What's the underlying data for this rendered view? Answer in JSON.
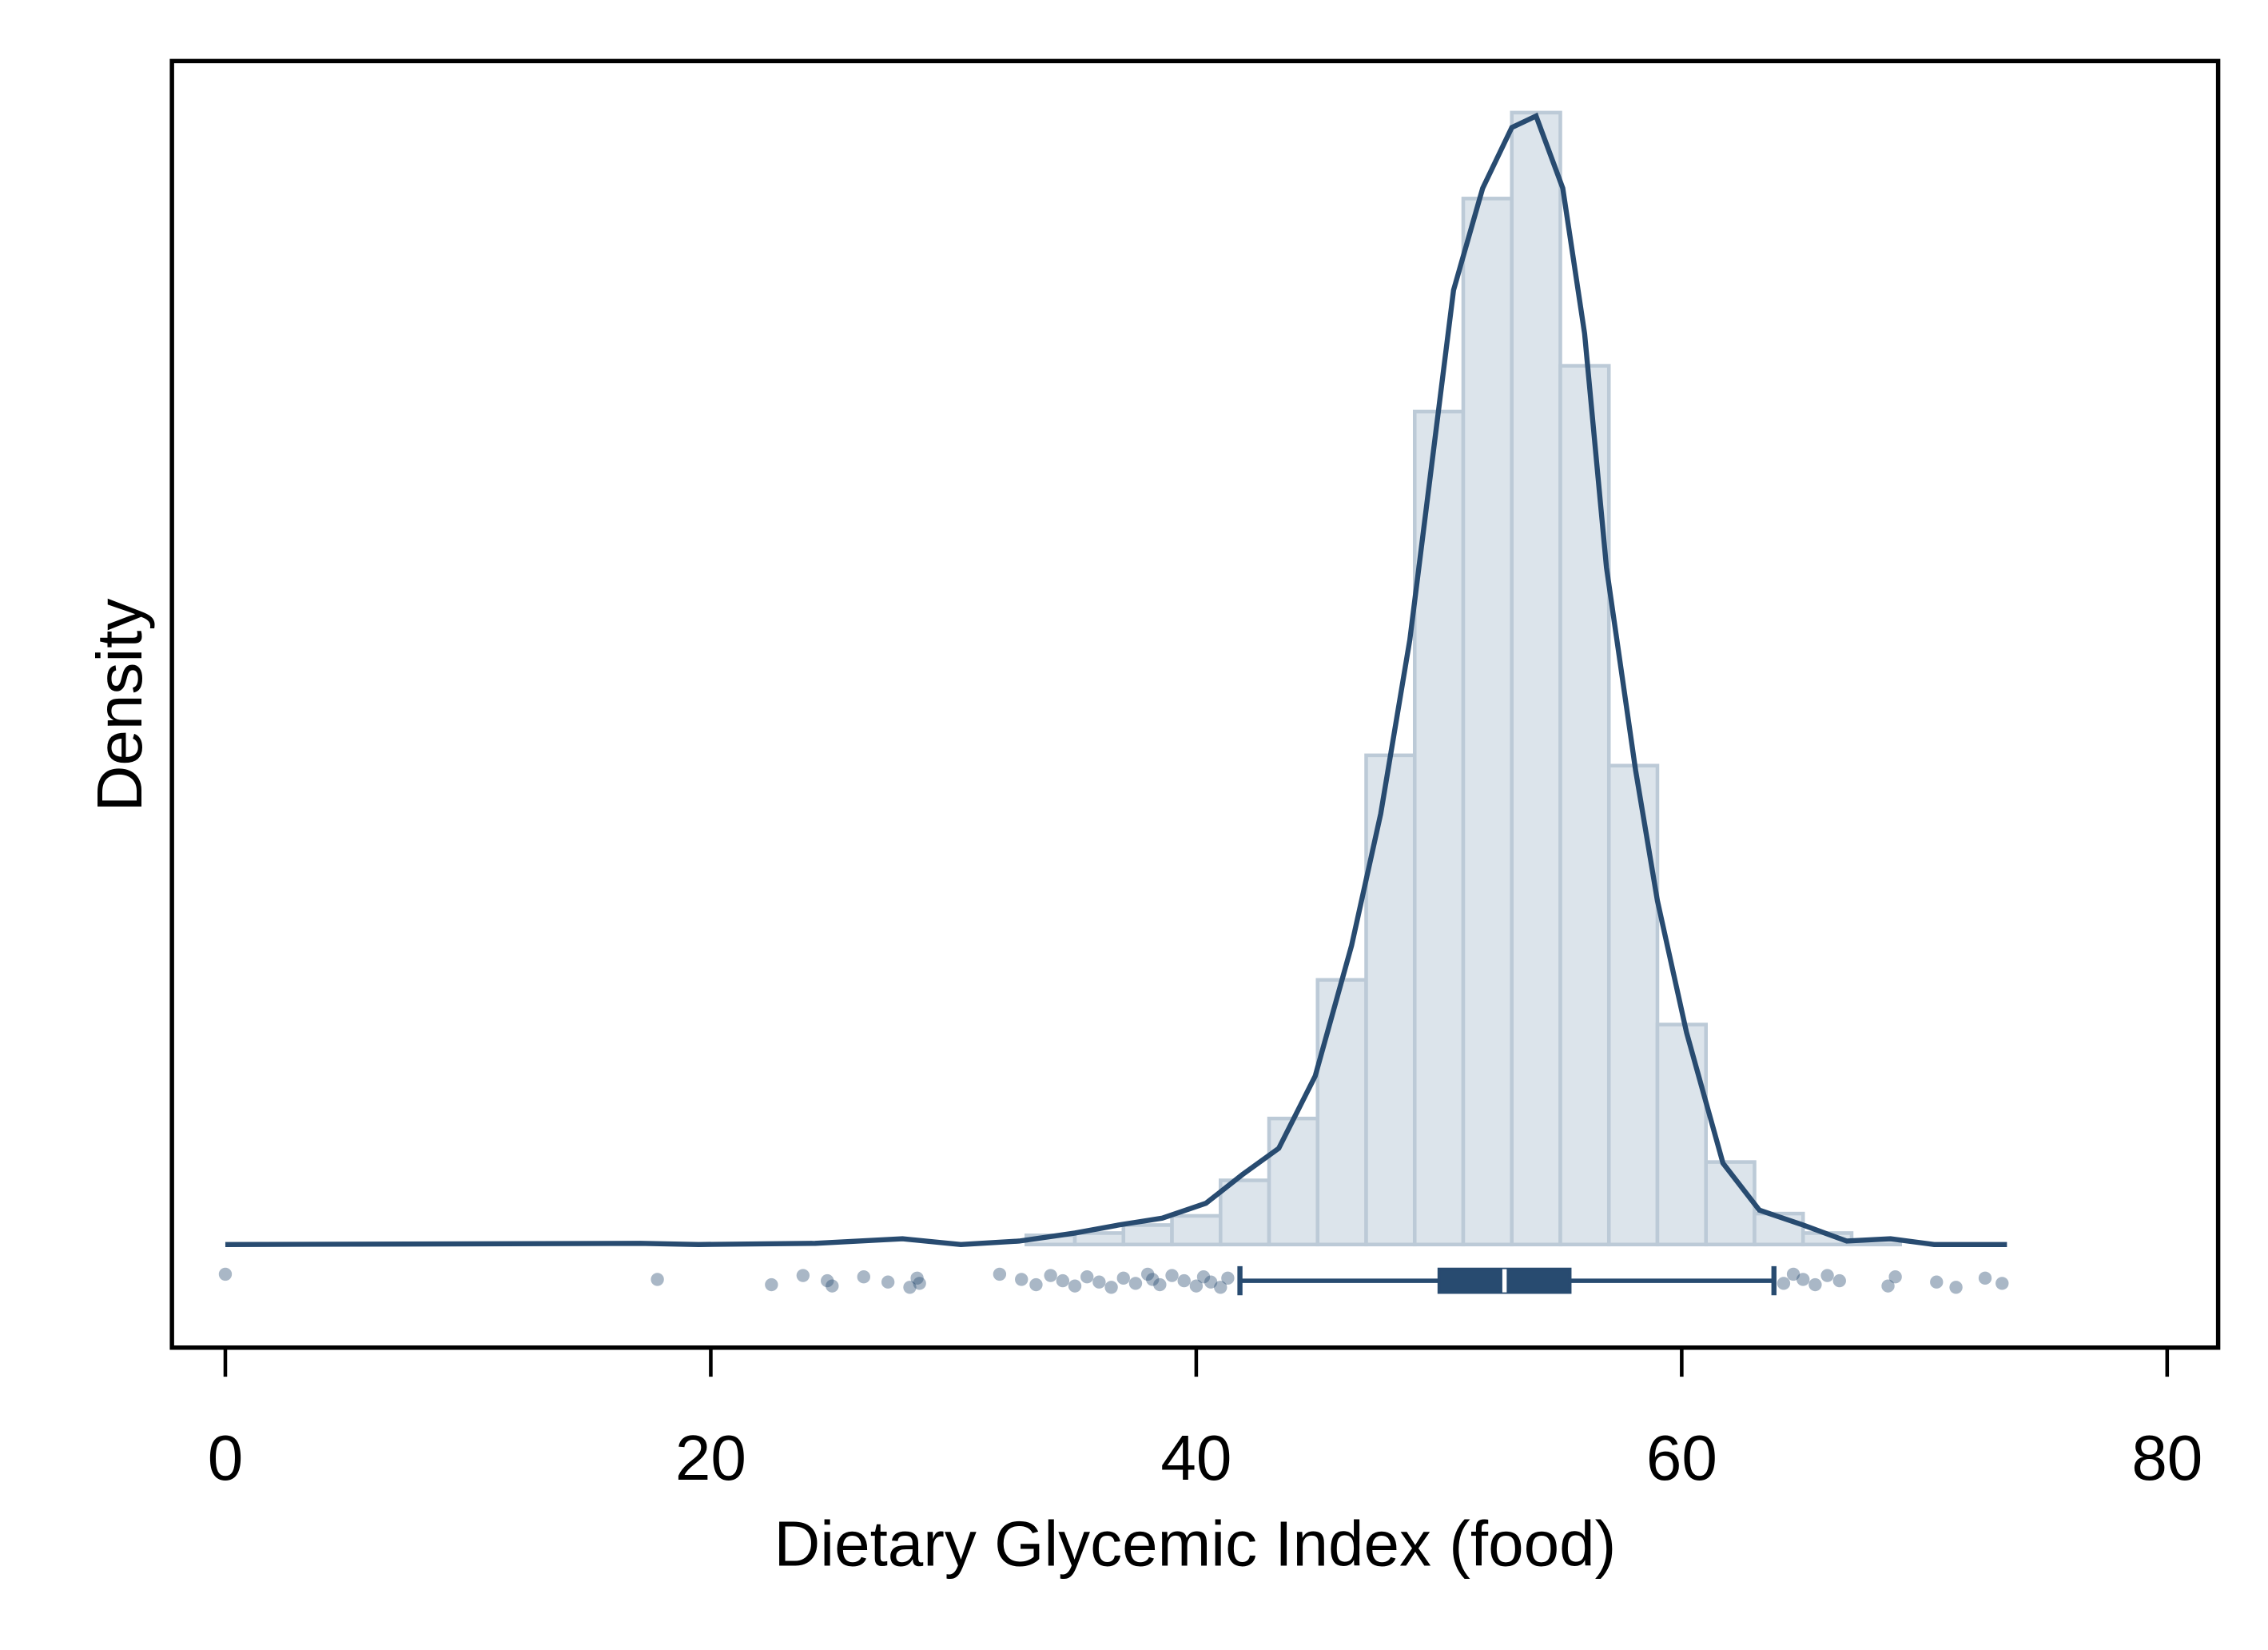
{
  "chart_data": {
    "type": "histogram",
    "xlabel": "Dietary Glycemic Index (food)",
    "ylabel": "Density",
    "bins": [
      33,
      35,
      37,
      39,
      41,
      43,
      45,
      47,
      49,
      51,
      53,
      55,
      57,
      59,
      61,
      63,
      65,
      67,
      69
    ],
    "values": [
      0.0008,
      0.001,
      0.0017,
      0.0025,
      0.0056,
      0.011,
      0.0231,
      0.0427,
      0.0727,
      0.0913,
      0.0988,
      0.0767,
      0.0418,
      0.0192,
      0.0072,
      0.0027,
      0.001,
      0.0004
    ],
    "color": "#dce4eb",
    "edgecolor": "#bccad7",
    "xlim": [
      -2.2,
      82.1
    ],
    "ylim": [
      -0.009,
      0.1033
    ],
    "xticks": [
      0,
      20,
      40,
      60,
      80
    ],
    "kde": {
      "color": "#284b70",
      "x": [
        0,
        17.1,
        19.5,
        24.3,
        27.9,
        30.3,
        32.7,
        35.0,
        36.8,
        38.6,
        40.4,
        41.9,
        43.4,
        44.9,
        46.4,
        47.6,
        48.8,
        50.6,
        51.8,
        53.0,
        54.0,
        55.1,
        56.0,
        56.9,
        58.1,
        59.0,
        60.2,
        61.7,
        63.2,
        65.0,
        66.8,
        68.6,
        70.4,
        73.4
      ],
      "y": [
        0,
        0.0001,
        0,
        0.0001,
        0.0005,
        0,
        0.0003,
        0.001,
        0.0017,
        0.0023,
        0.0036,
        0.0061,
        0.0084,
        0.0147,
        0.0261,
        0.0376,
        0.0528,
        0.0833,
        0.0922,
        0.0975,
        0.0985,
        0.0922,
        0.0795,
        0.0591,
        0.0414,
        0.03,
        0.0185,
        0.0071,
        0.003,
        0.0017,
        0.0003,
        0.0005,
        0,
        0
      ]
    },
    "box": {
      "color": "#284b70",
      "whislo": 41.8,
      "q1": 50.0,
      "med": 52.7,
      "q3": 55.4,
      "whishi": 63.8
    },
    "outliers": [
      0,
      17.8,
      22.5,
      23.8,
      24.8,
      25.0,
      26.3,
      27.3,
      28.2,
      28.5,
      28.6,
      31.9,
      32.8,
      33.4,
      34.0,
      34.5,
      35.0,
      35.5,
      36.0,
      36.5,
      37.0,
      37.5,
      38.0,
      38.2,
      38.5,
      39.0,
      39.5,
      40.0,
      40.3,
      40.6,
      41.0,
      41.3,
      64.2,
      64.6,
      65.0,
      65.5,
      66.0,
      66.5,
      68.5,
      68.8,
      70.5,
      71.3,
      72.5,
      73.2
    ]
  }
}
